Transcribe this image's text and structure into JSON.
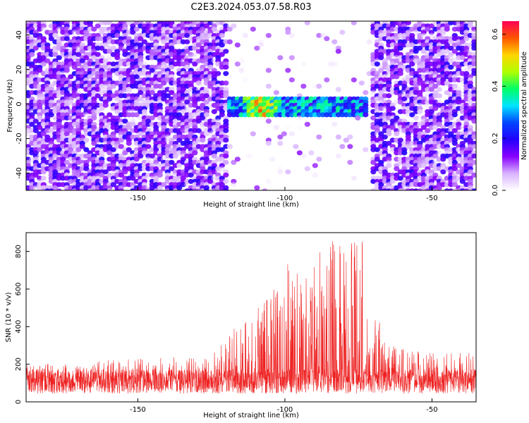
{
  "title": "C2E3.2024.053.07.58.R03",
  "chart_data": [
    {
      "type": "heatmap",
      "xlabel": "Height of straight line (km)",
      "ylabel": "Frequency (Hz)",
      "xlim": [
        -188,
        -35
      ],
      "ylim": [
        -50,
        48
      ],
      "xticks": [
        -150,
        -100,
        -50
      ],
      "yticks": [
        -40,
        -20,
        0,
        20,
        40
      ],
      "colorbar": {
        "label": "Normalized spectral amplitude",
        "range": [
          0.0,
          0.65
        ],
        "ticks": [
          0.0,
          0.2,
          0.4,
          0.6
        ],
        "colormap": [
          "#ffffff",
          "#d9b3ff",
          "#8800ff",
          "#2200ff",
          "#0044ff",
          "#00e5ff",
          "#00ff66",
          "#b0ff00",
          "#ffd400",
          "#ff5500",
          "#ff0055"
        ]
      },
      "signal": {
        "x_range": [
          -120,
          -72
        ],
        "frequency_center": -2,
        "frequency_halfwidth": 5,
        "peak_amplitude": 0.62,
        "peak_x": -108
      },
      "quiet_band": [
        -120,
        -70
      ],
      "background_level": 0.08
    },
    {
      "type": "line",
      "xlabel": "Height of straight line (km)",
      "ylabel": "SNR (10 * v/v)",
      "xlim": [
        -188,
        -35
      ],
      "ylim": [
        0,
        900
      ],
      "xticks": [
        -150,
        -100,
        -50
      ],
      "yticks": [
        0,
        200,
        400,
        600,
        800
      ],
      "color": "#ee2222",
      "baseline": 110,
      "envelope": [
        {
          "x": -188,
          "y": 200
        },
        {
          "x": -125,
          "y": 250
        },
        {
          "x": -115,
          "y": 450
        },
        {
          "x": -105,
          "y": 560
        },
        {
          "x": -97,
          "y": 830
        },
        {
          "x": -93,
          "y": 650
        },
        {
          "x": -86,
          "y": 880
        },
        {
          "x": -82,
          "y": 860
        },
        {
          "x": -78,
          "y": 840
        },
        {
          "x": -74,
          "y": 890
        },
        {
          "x": -70,
          "y": 480
        },
        {
          "x": -62,
          "y": 280
        },
        {
          "x": -35,
          "y": 260
        }
      ]
    }
  ]
}
